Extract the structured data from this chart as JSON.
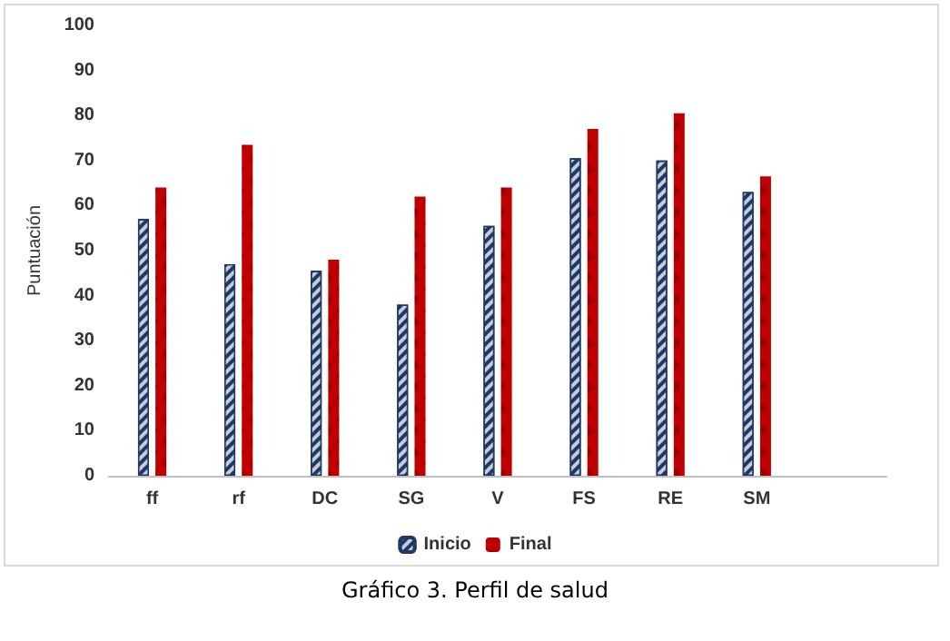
{
  "chart_data": {
    "type": "bar",
    "ylabel": "Puntuación",
    "categories": [
      "ff",
      "rf",
      "DC",
      "SG",
      "V",
      "FS",
      "RE",
      "SM",
      null
    ],
    "series": [
      {
        "name": "Inicio",
        "color": "#1f3864",
        "values": [
          57,
          47,
          45.5,
          38,
          55.5,
          70.5,
          70,
          63,
          null
        ]
      },
      {
        "name": "Final",
        "color": "#c00000",
        "values": [
          64,
          73.5,
          48,
          62,
          64,
          77,
          80.5,
          66.5,
          null
        ]
      }
    ],
    "ylim": [
      0,
      100
    ],
    "yticks": [
      0,
      10,
      20,
      30,
      40,
      50,
      60,
      70,
      80,
      90,
      100
    ],
    "grid": false,
    "legend": "bottom",
    "annotations": [
      "Gráfico 3. Perfil de salud"
    ]
  }
}
